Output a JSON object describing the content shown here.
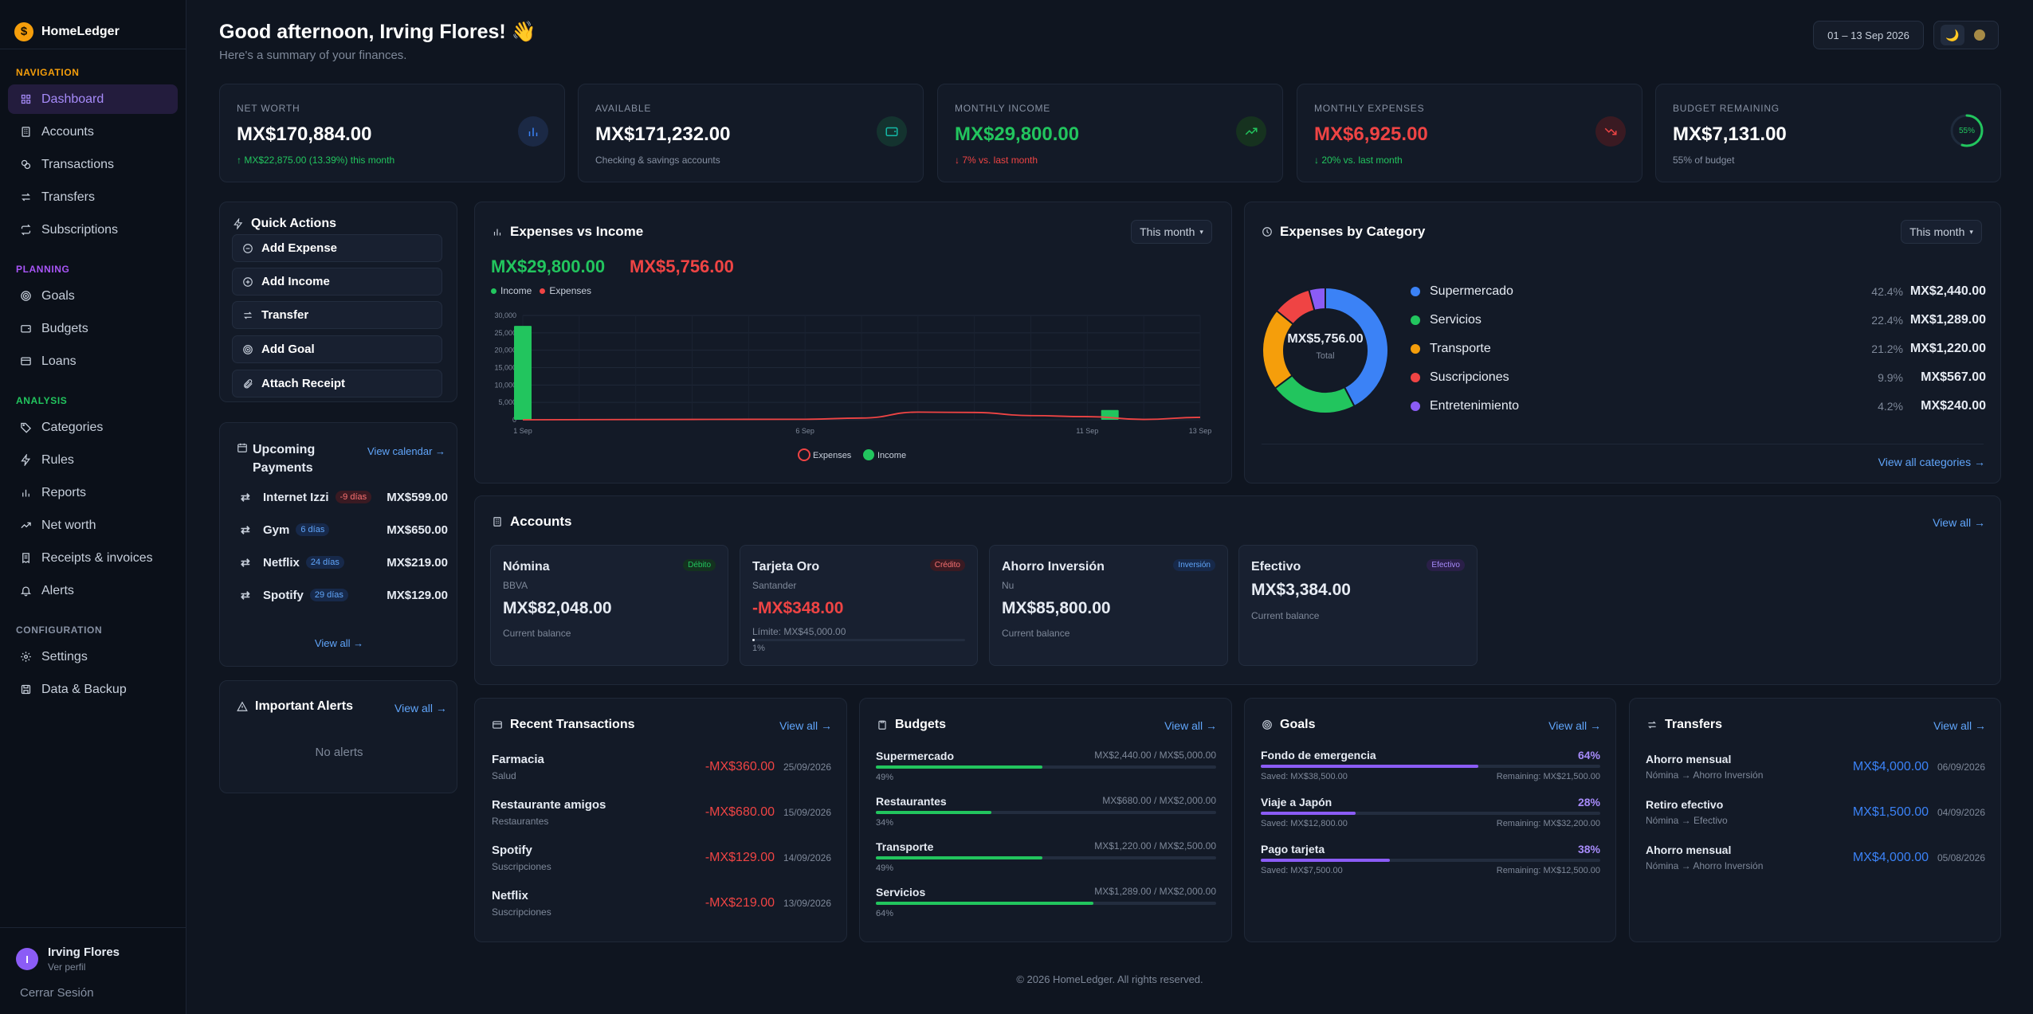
{
  "brand": {
    "name": "HomeLedger",
    "logo": "$"
  },
  "sidebar": {
    "sections": [
      {
        "title": "NAVIGATION",
        "color": "#f59e0b",
        "items": [
          {
            "label": "Dashboard",
            "icon": "grid-icon",
            "active": true
          },
          {
            "label": "Accounts",
            "icon": "building-icon"
          },
          {
            "label": "Transactions",
            "icon": "coins-icon"
          },
          {
            "label": "Transfers",
            "icon": "arrows-icon"
          },
          {
            "label": "Subscriptions",
            "icon": "repeat-icon"
          }
        ]
      },
      {
        "title": "PLANNING",
        "color": "#a855f7",
        "items": [
          {
            "label": "Goals",
            "icon": "target-icon"
          },
          {
            "label": "Budgets",
            "icon": "wallet-icon"
          },
          {
            "label": "Loans",
            "icon": "card-icon"
          }
        ]
      },
      {
        "title": "ANALYSIS",
        "color": "#22c55e",
        "items": [
          {
            "label": "Categories",
            "icon": "tag-icon"
          },
          {
            "label": "Rules",
            "icon": "bolt-icon"
          },
          {
            "label": "Reports",
            "icon": "bar-chart-icon"
          },
          {
            "label": "Net worth",
            "icon": "trend-icon"
          },
          {
            "label": "Receipts & invoices",
            "icon": "receipt-icon"
          },
          {
            "label": "Alerts",
            "icon": "bell-icon"
          }
        ]
      },
      {
        "title": "CONFIGURATION",
        "color": "#8791a3",
        "items": [
          {
            "label": "Settings",
            "icon": "gear-icon"
          },
          {
            "label": "Data & Backup",
            "icon": "save-icon"
          }
        ]
      }
    ],
    "user": {
      "initial": "I",
      "name": "Irving Flores",
      "sub": "Ver perfil"
    },
    "logout": "Cerrar Sesión"
  },
  "header": {
    "greeting": "Good afternoon, Irving Flores! 👋",
    "subtitle": "Here's a summary of your finances.",
    "date_range": "01 – 13 Sep 2026"
  },
  "kpis": [
    {
      "label": "NET WORTH",
      "value": "MX$170,884.00",
      "sub": "↑ MX$22,875.00 (13.39%) this month",
      "icon": "bar-chart-icon"
    },
    {
      "label": "AVAILABLE",
      "value": "MX$171,232.00",
      "sub": "Checking & savings accounts",
      "icon": "wallet-icon"
    },
    {
      "label": "MONTHLY INCOME",
      "value": "MX$29,800.00",
      "sub": "↓ 7% vs. last month",
      "icon": "trend-up-icon"
    },
    {
      "label": "MONTHLY EXPENSES",
      "value": "MX$6,925.00",
      "sub": "↓ 20% vs. last month",
      "icon": "trend-down-icon"
    },
    {
      "label": "BUDGET REMAINING",
      "value": "MX$7,131.00",
      "sub": "55% of budget",
      "ring": "55%",
      "ring_pct": 55
    }
  ],
  "quick_actions": {
    "title": "Quick Actions",
    "items": [
      "Add Expense",
      "Add Income",
      "Transfer",
      "Add Goal",
      "Attach Receipt"
    ]
  },
  "upcoming": {
    "title": "Upcoming Payments",
    "link": "View calendar →",
    "items": [
      {
        "name": "Internet Izzi",
        "badge": "-9 días",
        "amount": "MX$599.00",
        "overdue": true
      },
      {
        "name": "Gym",
        "badge": "6 días",
        "amount": "MX$650.00"
      },
      {
        "name": "Netflix",
        "badge": "24 días",
        "amount": "MX$219.00"
      },
      {
        "name": "Spotify",
        "badge": "29 días",
        "amount": "MX$129.00"
      }
    ],
    "view_all": "View all →"
  },
  "alerts": {
    "title": "Important Alerts",
    "link": "View all →",
    "empty": "No alerts"
  },
  "expenses_income": {
    "title": "Expenses vs Income",
    "filter": "This month",
    "income_total": "MX$29,800.00",
    "expense_total": "MX$5,756.00",
    "legend_income": "Income",
    "legend_expenses": "Expenses"
  },
  "chart_data": {
    "type": "bar",
    "x_ticks": [
      "1 Sep",
      "6 Sep",
      "11 Sep",
      "13 Sep"
    ],
    "y_ticks": [
      "30,000",
      "25,000",
      "20,000",
      "15,000",
      "10,000",
      "5,000",
      "0"
    ],
    "ylim": [
      0,
      30000
    ],
    "xlim": [
      1,
      13
    ],
    "series": [
      {
        "name": "Income",
        "kind": "bar",
        "color": "#22c55e",
        "points": [
          [
            1,
            27000
          ],
          [
            11.4,
            2800
          ]
        ]
      },
      {
        "name": "Expenses",
        "kind": "line",
        "color": "#ef4444",
        "points": [
          [
            1,
            0
          ],
          [
            4,
            100
          ],
          [
            6,
            150
          ],
          [
            7,
            500
          ],
          [
            8,
            2200
          ],
          [
            9,
            2100
          ],
          [
            10,
            1200
          ],
          [
            11,
            900
          ],
          [
            12,
            100
          ],
          [
            13,
            700
          ]
        ]
      }
    ],
    "bottom_legend": [
      "Expenses",
      "Income"
    ]
  },
  "categories": {
    "title": "Expenses by Category",
    "filter": "This month",
    "center_value": "MX$5,756.00",
    "center_label": "Total",
    "items": [
      {
        "name": "Supermercado",
        "pct": "42.4%",
        "amount": "MX$2,440.00",
        "value": 42.4,
        "color": "#3b82f6"
      },
      {
        "name": "Servicios",
        "pct": "22.4%",
        "amount": "MX$1,289.00",
        "value": 22.4,
        "color": "#22c55e"
      },
      {
        "name": "Transporte",
        "pct": "21.2%",
        "amount": "MX$1,220.00",
        "value": 21.2,
        "color": "#f59e0b"
      },
      {
        "name": "Suscripciones",
        "pct": "9.9%",
        "amount": "MX$567.00",
        "value": 9.9,
        "color": "#ef4444"
      },
      {
        "name": "Entretenimiento",
        "pct": "4.2%",
        "amount": "MX$240.00",
        "value": 4.2,
        "color": "#8b5cf6"
      }
    ],
    "link": "View all categories →"
  },
  "accounts": {
    "title": "Accounts",
    "link": "View all →",
    "items": [
      {
        "name": "Nómina",
        "bank": "BBVA",
        "badge": "Débito",
        "balance": "MX$82,048.00",
        "sub": "Current balance"
      },
      {
        "name": "Tarjeta Oro",
        "bank": "Santander",
        "badge": "Crédito",
        "balance": "-MX$348.00",
        "sub": "Límite: MX$45,000.00",
        "usage": "1%",
        "usage_pct": 1
      },
      {
        "name": "Ahorro Inversión",
        "bank": "Nu",
        "badge": "Inversión",
        "balance": "MX$85,800.00",
        "sub": "Current balance"
      },
      {
        "name": "Efectivo",
        "badge": "Efectivo",
        "balance": "MX$3,384.00",
        "sub": "Current balance"
      }
    ]
  },
  "recent": {
    "title": "Recent Transactions",
    "link": "View all →",
    "items": [
      {
        "name": "Farmacia",
        "cat": "Salud",
        "amount": "-MX$360.00",
        "date": "25/09/2026"
      },
      {
        "name": "Restaurante amigos",
        "cat": "Restaurantes",
        "amount": "-MX$680.00",
        "date": "15/09/2026"
      },
      {
        "name": "Spotify",
        "cat": "Suscripciones",
        "amount": "-MX$129.00",
        "date": "14/09/2026"
      },
      {
        "name": "Netflix",
        "cat": "Suscripciones",
        "amount": "-MX$219.00",
        "date": "13/09/2026"
      }
    ]
  },
  "budgets": {
    "title": "Budgets",
    "link": "View all →",
    "items": [
      {
        "name": "Supermercado",
        "range": "MX$2,440.00 / MX$5,000.00",
        "pct": "49%",
        "value": 49
      },
      {
        "name": "Restaurantes",
        "range": "MX$680.00 / MX$2,000.00",
        "pct": "34%",
        "value": 34
      },
      {
        "name": "Transporte",
        "range": "MX$1,220.00 / MX$2,500.00",
        "pct": "49%",
        "value": 49
      },
      {
        "name": "Servicios",
        "range": "MX$1,289.00 / MX$2,000.00",
        "pct": "64%",
        "value": 64
      }
    ]
  },
  "goals": {
    "title": "Goals",
    "link": "View all →",
    "items": [
      {
        "name": "Fondo de emergencia",
        "pct": "64%",
        "value": 64,
        "saved": "Saved: MX$38,500.00",
        "remaining": "Remaining: MX$21,500.00"
      },
      {
        "name": "Viaje a Japón",
        "pct": "28%",
        "value": 28,
        "saved": "Saved: MX$12,800.00",
        "remaining": "Remaining: MX$32,200.00"
      },
      {
        "name": "Pago tarjeta",
        "pct": "38%",
        "value": 38,
        "saved": "Saved: MX$7,500.00",
        "remaining": "Remaining: MX$12,500.00"
      }
    ]
  },
  "transfers": {
    "title": "Transfers",
    "link": "View all →",
    "items": [
      {
        "name": "Ahorro mensual",
        "route": "Nómina → Ahorro Inversión",
        "amount": "MX$4,000.00",
        "date": "06/09/2026"
      },
      {
        "name": "Retiro efectivo",
        "route": "Nómina → Efectivo",
        "amount": "MX$1,500.00",
        "date": "04/09/2026"
      },
      {
        "name": "Ahorro mensual",
        "route": "Nómina → Ahorro Inversión",
        "amount": "MX$4,000.00",
        "date": "05/08/2026"
      }
    ]
  },
  "footer": "© 2026 HomeLedger. All rights reserved."
}
